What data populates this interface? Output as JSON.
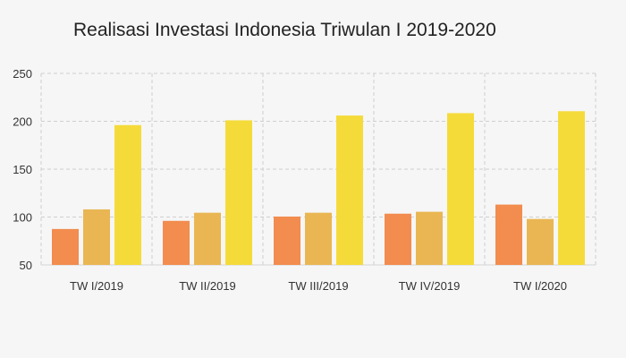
{
  "chart_data": {
    "type": "bar",
    "title": "Realisasi Investasi Indonesia Triwulan I 2019-2020",
    "xlabel": "",
    "ylabel": "",
    "categories": [
      "TW I/2019",
      "TW II/2019",
      "TW III/2019",
      "TW IV/2019",
      "TW I/2020"
    ],
    "series": [
      {
        "values": [
          87.5,
          96,
          100.5,
          103.5,
          113
        ],
        "color": "#f28c4f"
      },
      {
        "values": [
          108,
          104.5,
          104.5,
          105.5,
          98
        ],
        "color": "#e9b653"
      },
      {
        "values": [
          196,
          201,
          206,
          208.5,
          210.5
        ],
        "color": "#f5db3a"
      }
    ],
    "ylim": [
      50,
      250
    ],
    "yticks": [
      "50",
      "100",
      "150",
      "200",
      "250"
    ],
    "grid": true,
    "legend": "none"
  },
  "colors": {
    "grid": "#cfcfcf",
    "axis_text": "#333333",
    "background": "#f6f6f6"
  }
}
